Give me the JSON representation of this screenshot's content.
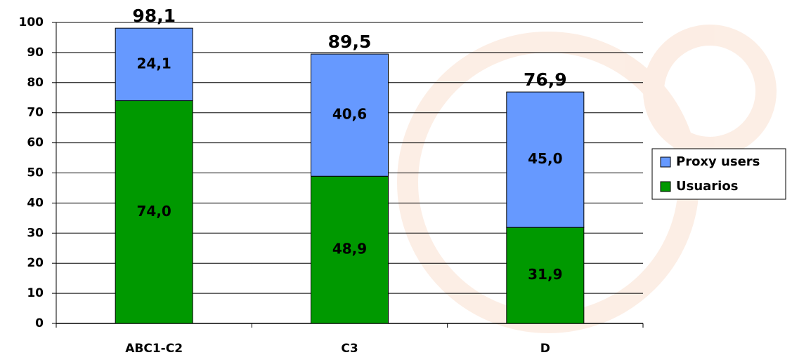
{
  "chart_data": {
    "type": "stacked_bar",
    "categories": [
      "ABC1-C2",
      "C3",
      "D"
    ],
    "series": [
      {
        "name": "Usuarios",
        "color": "#009900",
        "values": [
          74.0,
          48.9,
          31.9
        ],
        "value_labels": [
          "74,0",
          "48,9",
          "31,9"
        ]
      },
      {
        "name": "Proxy users",
        "color": "#6699ff",
        "values": [
          24.1,
          40.6,
          45.0
        ],
        "value_labels": [
          "24,1",
          "40,6",
          "45,0"
        ]
      }
    ],
    "totals": [
      98.1,
      89.5,
      76.9
    ],
    "total_labels": [
      "98,1",
      "89,5",
      "76,9"
    ],
    "ylim": [
      0,
      100
    ],
    "yticks": [
      0,
      10,
      20,
      30,
      40,
      50,
      60,
      70,
      80,
      90,
      100
    ],
    "grid": true,
    "legend": "right"
  }
}
